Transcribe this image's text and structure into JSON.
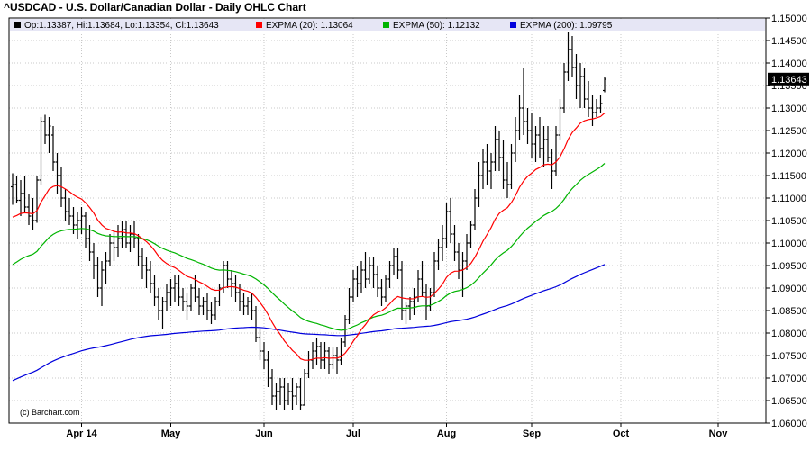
{
  "chart_data": {
    "type": "ohlc",
    "title": "^USDCAD - U.S. Dollar/Canadian Dollar - Daily OHLC Chart",
    "credit": "(c) Barchart.com",
    "legend": {
      "ohlc": "Op:1.13387, Hi:1.13684, Lo:1.13354, Cl:1.13643",
      "ema20": "EXPMA (20): 1.13064",
      "ema50": "EXPMA (50): 1.12132",
      "ema200": "EXPMA (200): 1.09795"
    },
    "last_price_label": "1.13643",
    "last_price": 1.13643,
    "ylim": [
      1.06,
      1.15
    ],
    "y_ticks": [
      "1.06000",
      "1.06500",
      "1.07000",
      "1.07500",
      "1.08000",
      "1.08500",
      "1.09000",
      "1.09500",
      "1.10000",
      "1.10500",
      "1.11000",
      "1.11500",
      "1.12000",
      "1.12500",
      "1.13000",
      "1.13500",
      "1.14000",
      "1.14500",
      "1.15000"
    ],
    "x_ticks": [
      {
        "label": "Apr 14",
        "bar": 17
      },
      {
        "label": "May",
        "bar": 39
      },
      {
        "label": "Jun",
        "bar": 62
      },
      {
        "label": "Jul",
        "bar": 84
      },
      {
        "label": "Aug",
        "bar": 107
      },
      {
        "label": "Sep",
        "bar": 128
      },
      {
        "label": "Oct",
        "bar": 150
      },
      {
        "label": "Nov",
        "bar": 174
      }
    ],
    "grid": true,
    "colors": {
      "ohlc": "#000000",
      "ema20": "#ff0000",
      "ema50": "#00b400",
      "ema200": "#0000dc",
      "legend_bg": "#e6e6f5"
    },
    "ohlc": [
      [
        1.1125,
        1.1155,
        1.1085,
        1.113
      ],
      [
        1.113,
        1.115,
        1.109,
        1.1095
      ],
      [
        1.1095,
        1.114,
        1.106,
        1.111
      ],
      [
        1.111,
        1.115,
        1.107,
        1.108
      ],
      [
        1.108,
        1.111,
        1.104,
        1.106
      ],
      [
        1.106,
        1.11,
        1.103,
        1.105
      ],
      [
        1.105,
        1.115,
        1.1045,
        1.114
      ],
      [
        1.114,
        1.128,
        1.113,
        1.127
      ],
      [
        1.127,
        1.1285,
        1.122,
        1.124
      ],
      [
        1.124,
        1.128,
        1.12,
        1.126
      ],
      [
        1.124,
        1.126,
        1.116,
        1.118
      ],
      [
        1.118,
        1.12,
        1.111,
        1.115
      ],
      [
        1.115,
        1.117,
        1.108,
        1.11
      ],
      [
        1.11,
        1.112,
        1.105,
        1.107
      ],
      [
        1.107,
        1.11,
        1.104,
        1.106
      ],
      [
        1.106,
        1.108,
        1.102,
        1.104
      ],
      [
        1.104,
        1.107,
        1.101,
        1.105
      ],
      [
        1.105,
        1.108,
        1.102,
        1.106
      ],
      [
        1.106,
        1.107,
        1.099,
        1.101
      ],
      [
        1.101,
        1.104,
        1.096,
        1.098
      ],
      [
        1.098,
        1.1,
        1.092,
        1.095
      ],
      [
        1.095,
        1.097,
        1.088,
        1.09
      ],
      [
        1.09,
        1.096,
        1.086,
        1.094
      ],
      [
        1.094,
        1.098,
        1.091,
        1.096
      ],
      [
        1.096,
        1.102,
        1.095,
        1.1
      ],
      [
        1.1,
        1.103,
        1.096,
        1.099
      ],
      [
        1.099,
        1.104,
        1.097,
        1.101
      ],
      [
        1.101,
        1.105,
        1.099,
        1.103
      ],
      [
        1.103,
        1.105,
        1.099,
        1.1
      ],
      [
        1.1,
        1.104,
        1.098,
        1.102
      ],
      [
        1.102,
        1.105,
        1.099,
        1.101
      ],
      [
        1.101,
        1.102,
        1.095,
        1.097
      ],
      [
        1.097,
        1.099,
        1.092,
        1.095
      ],
      [
        1.095,
        1.097,
        1.09,
        1.094
      ],
      [
        1.094,
        1.096,
        1.089,
        1.091
      ],
      [
        1.091,
        1.093,
        1.086,
        1.088
      ],
      [
        1.088,
        1.09,
        1.083,
        1.085
      ],
      [
        1.085,
        1.088,
        1.081,
        1.087
      ],
      [
        1.087,
        1.091,
        1.085,
        1.089
      ],
      [
        1.089,
        1.092,
        1.086,
        1.09
      ],
      [
        1.09,
        1.093,
        1.087,
        1.091
      ],
      [
        1.091,
        1.093,
        1.086,
        1.088
      ],
      [
        1.088,
        1.09,
        1.085,
        1.087
      ],
      [
        1.087,
        1.089,
        1.083,
        1.086
      ],
      [
        1.086,
        1.091,
        1.085,
        1.09
      ],
      [
        1.09,
        1.093,
        1.087,
        1.088
      ],
      [
        1.088,
        1.09,
        1.084,
        1.086
      ],
      [
        1.086,
        1.088,
        1.084,
        1.087
      ],
      [
        1.087,
        1.089,
        1.083,
        1.085
      ],
      [
        1.085,
        1.087,
        1.082,
        1.084
      ],
      [
        1.084,
        1.088,
        1.083,
        1.087
      ],
      [
        1.087,
        1.091,
        1.086,
        1.09
      ],
      [
        1.09,
        1.096,
        1.089,
        1.095
      ],
      [
        1.095,
        1.096,
        1.09,
        1.092
      ],
      [
        1.092,
        1.094,
        1.088,
        1.091
      ],
      [
        1.091,
        1.093,
        1.087,
        1.089
      ],
      [
        1.089,
        1.091,
        1.085,
        1.087
      ],
      [
        1.087,
        1.089,
        1.084,
        1.086
      ],
      [
        1.086,
        1.088,
        1.084,
        1.087
      ],
      [
        1.087,
        1.089,
        1.083,
        1.085
      ],
      [
        1.085,
        1.086,
        1.078,
        1.079
      ],
      [
        1.079,
        1.081,
        1.074,
        1.076
      ],
      [
        1.076,
        1.078,
        1.072,
        1.074
      ],
      [
        1.074,
        1.076,
        1.068,
        1.07
      ],
      [
        1.07,
        1.072,
        1.064,
        1.066
      ],
      [
        1.066,
        1.069,
        1.063,
        1.067
      ],
      [
        1.067,
        1.07,
        1.064,
        1.068
      ],
      [
        1.068,
        1.07,
        1.063,
        1.065
      ],
      [
        1.065,
        1.069,
        1.064,
        1.067
      ],
      [
        1.067,
        1.07,
        1.063,
        1.066
      ],
      [
        1.066,
        1.069,
        1.064,
        1.068
      ],
      [
        1.068,
        1.07,
        1.063,
        1.064
      ],
      [
        1.064,
        1.072,
        1.064,
        1.071
      ],
      [
        1.071,
        1.076,
        1.07,
        1.074
      ],
      [
        1.074,
        1.078,
        1.072,
        1.076
      ],
      [
        1.076,
        1.079,
        1.073,
        1.077
      ],
      [
        1.077,
        1.078,
        1.072,
        1.074
      ],
      [
        1.074,
        1.078,
        1.072,
        1.076
      ],
      [
        1.076,
        1.077,
        1.071,
        1.073
      ],
      [
        1.073,
        1.077,
        1.072,
        1.075
      ],
      [
        1.075,
        1.077,
        1.071,
        1.074
      ],
      [
        1.074,
        1.079,
        1.073,
        1.078
      ],
      [
        1.078,
        1.084,
        1.077,
        1.083
      ],
      [
        1.083,
        1.09,
        1.082,
        1.088
      ],
      [
        1.088,
        1.094,
        1.087,
        1.092
      ],
      [
        1.092,
        1.095,
        1.088,
        1.091
      ],
      [
        1.091,
        1.096,
        1.089,
        1.094
      ],
      [
        1.094,
        1.098,
        1.09,
        1.092
      ],
      [
        1.092,
        1.097,
        1.091,
        1.095
      ],
      [
        1.095,
        1.097,
        1.09,
        1.093
      ],
      [
        1.093,
        1.095,
        1.088,
        1.09
      ],
      [
        1.09,
        1.092,
        1.086,
        1.088
      ],
      [
        1.088,
        1.093,
        1.087,
        1.092
      ],
      [
        1.092,
        1.096,
        1.09,
        1.095
      ],
      [
        1.095,
        1.099,
        1.093,
        1.097
      ],
      [
        1.097,
        1.099,
        1.092,
        1.094
      ],
      [
        1.094,
        1.096,
        1.083,
        1.085
      ],
      [
        1.085,
        1.087,
        1.082,
        1.086
      ],
      [
        1.086,
        1.088,
        1.083,
        1.087
      ],
      [
        1.087,
        1.09,
        1.084,
        1.088
      ],
      [
        1.088,
        1.094,
        1.087,
        1.092
      ],
      [
        1.092,
        1.096,
        1.088,
        1.089
      ],
      [
        1.089,
        1.091,
        1.083,
        1.086
      ],
      [
        1.086,
        1.09,
        1.085,
        1.089
      ],
      [
        1.089,
        1.098,
        1.088,
        1.096
      ],
      [
        1.096,
        1.101,
        1.094,
        1.099
      ],
      [
        1.099,
        1.104,
        1.096,
        1.101
      ],
      [
        1.101,
        1.109,
        1.099,
        1.107
      ],
      [
        1.107,
        1.11,
        1.1,
        1.102
      ],
      [
        1.102,
        1.104,
        1.096,
        1.098
      ],
      [
        1.098,
        1.1,
        1.092,
        1.094
      ],
      [
        1.094,
        1.098,
        1.088,
        1.096
      ],
      [
        1.096,
        1.102,
        1.094,
        1.1
      ],
      [
        1.1,
        1.105,
        1.099,
        1.104
      ],
      [
        1.104,
        1.112,
        1.103,
        1.11
      ],
      [
        1.11,
        1.118,
        1.108,
        1.115
      ],
      [
        1.115,
        1.121,
        1.112,
        1.118
      ],
      [
        1.118,
        1.122,
        1.113,
        1.116
      ],
      [
        1.116,
        1.12,
        1.112,
        1.118
      ],
      [
        1.118,
        1.126,
        1.116,
        1.123
      ],
      [
        1.123,
        1.125,
        1.116,
        1.119
      ],
      [
        1.119,
        1.123,
        1.112,
        1.114
      ],
      [
        1.114,
        1.118,
        1.11,
        1.113
      ],
      [
        1.113,
        1.122,
        1.112,
        1.12
      ],
      [
        1.12,
        1.128,
        1.118,
        1.125
      ],
      [
        1.125,
        1.133,
        1.123,
        1.13
      ],
      [
        1.13,
        1.139,
        1.124,
        1.127
      ],
      [
        1.127,
        1.13,
        1.122,
        1.125
      ],
      [
        1.125,
        1.129,
        1.119,
        1.122
      ],
      [
        1.122,
        1.126,
        1.118,
        1.124
      ],
      [
        1.124,
        1.128,
        1.119,
        1.121
      ],
      [
        1.121,
        1.126,
        1.117,
        1.123
      ],
      [
        1.123,
        1.126,
        1.118,
        1.119
      ],
      [
        1.119,
        1.121,
        1.112,
        1.116
      ],
      [
        1.116,
        1.126,
        1.115,
        1.124
      ],
      [
        1.124,
        1.132,
        1.123,
        1.13
      ],
      [
        1.13,
        1.14,
        1.129,
        1.138
      ],
      [
        1.138,
        1.147,
        1.136,
        1.143
      ],
      [
        1.143,
        1.146,
        1.137,
        1.139
      ],
      [
        1.139,
        1.142,
        1.132,
        1.135
      ],
      [
        1.135,
        1.14,
        1.13,
        1.137
      ],
      [
        1.137,
        1.139,
        1.13,
        1.132
      ],
      [
        1.132,
        1.136,
        1.128,
        1.13
      ],
      [
        1.13,
        1.133,
        1.126,
        1.129
      ],
      [
        1.129,
        1.132,
        1.128,
        1.13
      ],
      [
        1.13,
        1.133,
        1.129,
        1.131
      ],
      [
        1.1339,
        1.1368,
        1.1335,
        1.1364
      ]
    ]
  }
}
